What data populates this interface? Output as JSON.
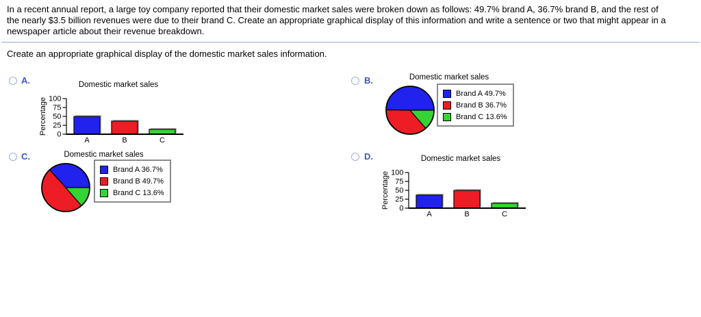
{
  "question": {
    "paragraph_lines": [
      "In a recent annual report, a large toy company reported that their domestic market sales were broken down as follows: 49.7% brand A, 36.7% brand B, and the rest of",
      "the nearly $3.5 billion revenues were due to their brand C. Create an appropriate graphical display of this information and write a sentence or two that might appear in a",
      "newspaper article about their revenue breakdown."
    ],
    "prompt": "Create an appropriate graphical display of the domestic market sales information."
  },
  "options": [
    {
      "letter": "A.",
      "selected": false
    },
    {
      "letter": "B.",
      "selected": false
    },
    {
      "letter": "C.",
      "selected": false
    },
    {
      "letter": "D.",
      "selected": false
    }
  ],
  "colors": {
    "brand_blue": "#2222ee",
    "brand_red": "#ee1c25",
    "brand_green": "#35d435",
    "option_letter_blue": "#3b55cc",
    "radio_border": "#9fade0",
    "legend_border": "#8a8a8a",
    "divider": "#aebcd4",
    "axis_black": "#000000"
  },
  "chart_data": [
    {
      "id": "option-a-bar",
      "type": "bar",
      "title": "Domestic market sales",
      "xlabel": "",
      "ylabel": "Percentage",
      "categories": [
        "A",
        "B",
        "C"
      ],
      "values": [
        49.7,
        36.7,
        13.6
      ],
      "bar_colors": [
        "#2222ee",
        "#ee1c25",
        "#35d435"
      ],
      "ylim": [
        0,
        100
      ],
      "yticks": [
        0,
        25,
        50,
        75,
        100
      ],
      "grid": false
    },
    {
      "id": "option-b-pie",
      "type": "pie",
      "title": "Domestic market sales",
      "labels": [
        "Brand A",
        "Brand B",
        "Brand C"
      ],
      "values": [
        49.7,
        36.7,
        13.6
      ],
      "slice_colors": [
        "#2222ee",
        "#ee1c25",
        "#35d435"
      ],
      "legend": [
        "Brand A 49.7%",
        "Brand B 36.7%",
        "Brand C 13.6%"
      ],
      "legend_position": "right",
      "start_angle_deg": 0,
      "direction": "counterclockwise"
    },
    {
      "id": "option-c-pie",
      "type": "pie",
      "title": "Domestic market sales",
      "labels": [
        "Brand A",
        "Brand B",
        "Brand C"
      ],
      "values": [
        36.7,
        49.7,
        13.6
      ],
      "slice_colors": [
        "#2222ee",
        "#ee1c25",
        "#35d435"
      ],
      "legend": [
        "Brand A 36.7%",
        "Brand B 49.7%",
        "Brand C 13.6%"
      ],
      "legend_position": "right",
      "start_angle_deg": 0,
      "direction": "counterclockwise"
    },
    {
      "id": "option-d-bar",
      "type": "bar",
      "title": "Domestic market sales",
      "xlabel": "",
      "ylabel": "Percentage",
      "categories": [
        "A",
        "B",
        "C"
      ],
      "values": [
        36.7,
        49.7,
        13.6
      ],
      "bar_colors": [
        "#2222ee",
        "#ee1c25",
        "#35d435"
      ],
      "ylim": [
        0,
        100
      ],
      "yticks": [
        0,
        25,
        50,
        75,
        100
      ],
      "grid": false
    }
  ]
}
